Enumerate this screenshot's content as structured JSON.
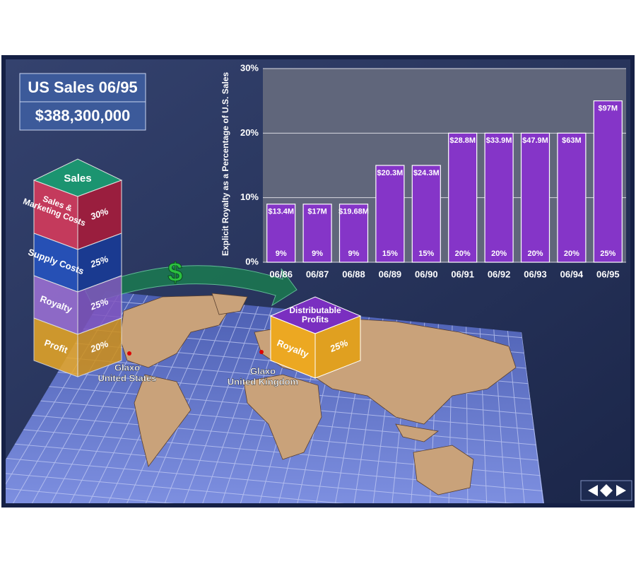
{
  "panel": {
    "title": "US Sales 06/95",
    "amount": "$388,300,000"
  },
  "stack": {
    "top": "Sales",
    "rows": [
      {
        "label": "Sales & Marketing Costs",
        "share": "30%"
      },
      {
        "label": "Supply Costs",
        "share": "25%"
      },
      {
        "label": "Royalty",
        "share": "25%"
      },
      {
        "label": "Profit",
        "share": "20%"
      }
    ]
  },
  "transfer": {
    "symbol": "$"
  },
  "cube": {
    "top": "Distributable Profits",
    "label": "Royalty",
    "share": "25%"
  },
  "map_labels": [
    {
      "lines": [
        "Glaxo",
        "United States"
      ]
    },
    {
      "lines": [
        "Glaxo",
        "United Kingdom"
      ]
    }
  ],
  "chart_data": {
    "type": "bar",
    "ylabel": "Explicit Royalty as a Percentage  of U.S. Sales",
    "categories": [
      "06/86",
      "06/87",
      "06/88",
      "06/89",
      "06/90",
      "06/91",
      "06/92",
      "06/93",
      "06/94",
      "06/95"
    ],
    "values": [
      9,
      9,
      9,
      15,
      15,
      20,
      20,
      20,
      20,
      25
    ],
    "value_labels": [
      "9%",
      "9%",
      "9%",
      "15%",
      "15%",
      "20%",
      "20%",
      "20%",
      "20%",
      "25%"
    ],
    "amount_labels": [
      "$13.4M",
      "$17M",
      "$19.68M",
      "$20.3M",
      "$24.3M",
      "$28.8M",
      "$33.9M",
      "$47.9M",
      "$63M",
      "$97M"
    ],
    "color": "#8535c8",
    "ylim": [
      0,
      30
    ],
    "yticks": [
      {
        "value": 0,
        "label": "0%"
      },
      {
        "value": 10,
        "label": "10%"
      },
      {
        "value": 20,
        "label": "20%"
      },
      {
        "value": 30,
        "label": "30%"
      }
    ],
    "grid": true
  }
}
